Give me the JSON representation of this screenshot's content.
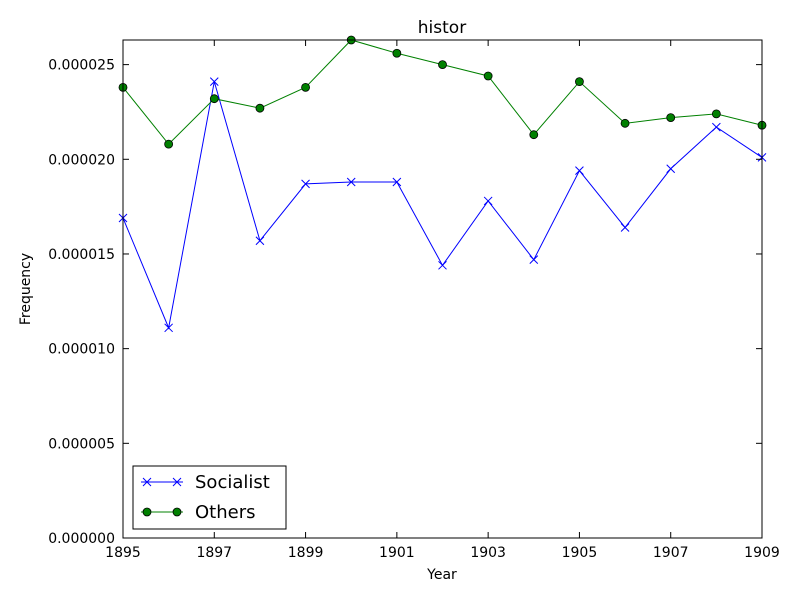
{
  "chart_data": {
    "type": "line",
    "title": "histor",
    "xlabel": "Year",
    "ylabel": "Frequency",
    "xlim": [
      1895,
      1909
    ],
    "ylim": [
      0,
      2.63e-05
    ],
    "xticks": [
      "1895",
      "1897",
      "1899",
      "1901",
      "1903",
      "1905",
      "1907",
      "1909"
    ],
    "yticks": [
      "0.000000",
      "0.000005",
      "0.000010",
      "0.000015",
      "0.000020",
      "0.000025"
    ],
    "x": [
      1895,
      1896,
      1897,
      1898,
      1899,
      1900,
      1901,
      1902,
      1903,
      1904,
      1905,
      1906,
      1907,
      1908,
      1909
    ],
    "series": [
      {
        "name": "Socialist",
        "color": "#0000ff",
        "marker": "x",
        "values": [
          1.69e-05,
          1.11e-05,
          2.41e-05,
          1.57e-05,
          1.87e-05,
          1.88e-05,
          1.88e-05,
          1.44e-05,
          1.78e-05,
          1.47e-05,
          1.94e-05,
          1.64e-05,
          1.95e-05,
          2.17e-05,
          2.01e-05
        ]
      },
      {
        "name": "Others",
        "color": "#008000",
        "marker": "o",
        "values": [
          2.38e-05,
          2.08e-05,
          2.32e-05,
          2.27e-05,
          2.38e-05,
          2.63e-05,
          2.56e-05,
          2.5e-05,
          2.44e-05,
          2.13e-05,
          2.41e-05,
          2.19e-05,
          2.22e-05,
          2.24e-05,
          2.18e-05
        ]
      }
    ],
    "legend": "lower-left",
    "grid": false
  }
}
